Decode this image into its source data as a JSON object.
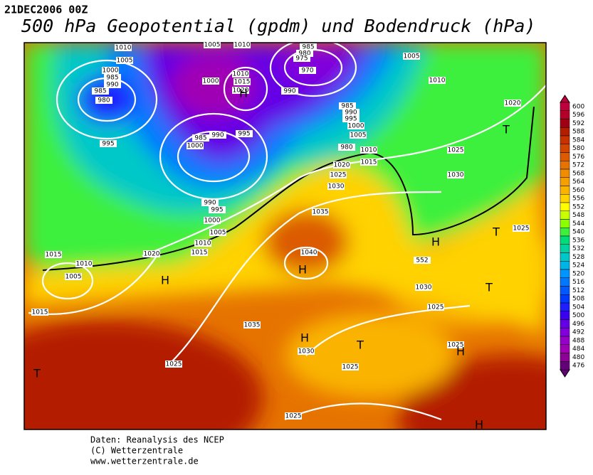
{
  "header": {
    "date": "21DEC2006 00Z",
    "title": "500 hPa Geopotential (gpdm) und Bodendruck (hPa)"
  },
  "colorbar": {
    "levels": [
      600,
      596,
      592,
      588,
      584,
      580,
      576,
      572,
      568,
      564,
      560,
      556,
      552,
      548,
      544,
      540,
      536,
      532,
      528,
      524,
      520,
      516,
      512,
      508,
      504,
      500,
      496,
      492,
      488,
      484,
      480,
      476
    ],
    "colors": [
      "#c0003c",
      "#b40028",
      "#a00014",
      "#b41e00",
      "#c83200",
      "#d24600",
      "#dc5a00",
      "#e67300",
      "#f08c00",
      "#f5a000",
      "#fab400",
      "#ffd200",
      "#ffff00",
      "#c8ff00",
      "#8cff00",
      "#3cf03c",
      "#00dc78",
      "#00d2a0",
      "#00c8c8",
      "#00b4e6",
      "#0096ff",
      "#0078ff",
      "#005aff",
      "#003cff",
      "#1e1eff",
      "#3c00f0",
      "#6400e6",
      "#8200dc",
      "#9600c8",
      "#a000b4",
      "#8c0096",
      "#640078"
    ]
  },
  "isobar_labels": [
    "1010",
    "1005",
    "1010",
    "985",
    "980",
    "975",
    "1005",
    "1005",
    "1000",
    "985",
    "990",
    "985",
    "980",
    "1000",
    "1010",
    "1015",
    "1020",
    "970",
    "990",
    "1010",
    "985",
    "990",
    "995",
    "1000",
    "1005",
    "1020",
    "995",
    "995",
    "990",
    "985",
    "1000",
    "980",
    "1010",
    "1025",
    "1015",
    "1020",
    "1025",
    "1030",
    "1030",
    "1035",
    "1025",
    "990",
    "995",
    "1000",
    "1005",
    "1010",
    "1015",
    "1020",
    "1015",
    "1010",
    "1005",
    "1040",
    "1030",
    "1025",
    "1035",
    "1030",
    "1025",
    "1025",
    "1025",
    "1015",
    "1025",
    "552"
  ],
  "pressure_centers": [
    "T",
    "H",
    "T",
    "T",
    "H",
    "H",
    "H",
    "T",
    "H",
    "T",
    "H",
    "H"
  ],
  "footer": {
    "lines": [
      "Daten: Reanalysis des NCEP",
      "(C) Wetterzentrale",
      "www.wetterzentrale.de"
    ]
  }
}
